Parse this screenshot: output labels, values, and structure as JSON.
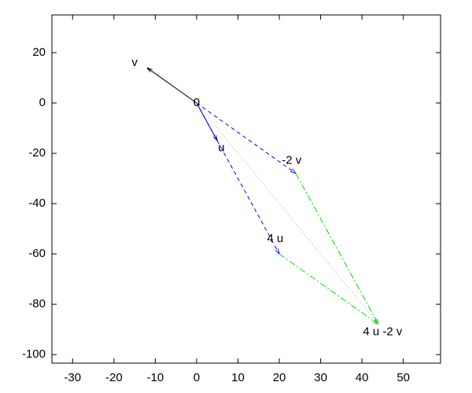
{
  "chart_data": {
    "type": "vector",
    "xlim": [
      -35,
      59
    ],
    "ylim": [
      -103.4,
      35
    ],
    "xticks": [
      -30,
      -20,
      -10,
      0,
      10,
      20,
      30,
      40,
      50
    ],
    "yticks": [
      20,
      0,
      -20,
      -40,
      -60,
      -80,
      -100
    ],
    "grid": false,
    "vectors": [
      {
        "from": [
          0,
          0
        ],
        "to": [
          -12,
          14
        ],
        "color": "#000000",
        "style": "solid"
      },
      {
        "from": [
          0,
          0
        ],
        "to": [
          5,
          -15
        ],
        "color": "#000080",
        "style": "solid"
      },
      {
        "from": [
          0,
          0
        ],
        "to": [
          24,
          -28
        ],
        "color": "#0000ff",
        "style": "dashed"
      },
      {
        "from": [
          0,
          0
        ],
        "to": [
          20,
          -60
        ],
        "color": "#0000ff",
        "style": "dashed"
      },
      {
        "from": [
          24,
          -28
        ],
        "to": [
          44,
          -88
        ],
        "color": "#00dd00",
        "style": "dashdot"
      },
      {
        "from": [
          20,
          -60
        ],
        "to": [
          44,
          -88
        ],
        "color": "#00dd00",
        "style": "dashdot"
      },
      {
        "from": [
          0,
          0
        ],
        "to": [
          44,
          -88
        ],
        "color": "#aaaaaa",
        "style": "dotted"
      }
    ],
    "labels": [
      {
        "text": "0",
        "x": 0,
        "y": 0
      },
      {
        "text": "u",
        "x": 6,
        "y": -18
      },
      {
        "text": "v",
        "x": -15,
        "y": 16
      },
      {
        "text": "-2 v",
        "x": 23,
        "y": -23
      },
      {
        "text": "4 u",
        "x": 19,
        "y": -54
      },
      {
        "text": "4 u -2 v",
        "x": 45,
        "y": -91
      }
    ]
  }
}
